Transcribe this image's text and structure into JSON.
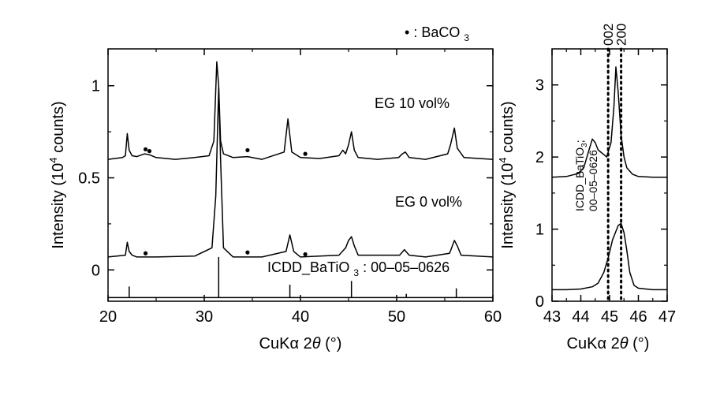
{
  "chart_data": [
    {
      "type": "line",
      "panel": "left",
      "xlabel": "CuKα 2θ (°)",
      "ylabel": "Intensity (10^4 counts)",
      "xlim": [
        20,
        60
      ],
      "ylim": [
        -0.17,
        1.2
      ],
      "xticks": [
        "20",
        "30",
        "40",
        "50",
        "60"
      ],
      "xtick_values": [
        20,
        30,
        40,
        50,
        60
      ],
      "yticks": [
        "0",
        "0.5",
        "1"
      ],
      "ytick_values": [
        0,
        0.5,
        1
      ],
      "grid": false,
      "series": [
        {
          "name": "EG 10 vol%",
          "baseline": 0.6,
          "x": [
            20,
            21.5,
            21.8,
            22.0,
            22.2,
            22.5,
            23,
            23.8,
            24.3,
            25,
            27,
            29,
            30.5,
            31.0,
            31.3,
            31.5,
            31.7,
            32.0,
            33,
            34.5,
            36,
            38.3,
            38.7,
            39.1,
            40,
            42,
            44,
            44.4,
            44.7,
            45.0,
            45.3,
            45.6,
            46,
            48,
            50.2,
            50.6,
            50.9,
            51.3,
            53,
            55.3,
            55.6,
            56.0,
            56.3,
            57,
            60
          ],
          "y": [
            0.6,
            0.61,
            0.62,
            0.74,
            0.65,
            0.62,
            0.615,
            0.63,
            0.625,
            0.61,
            0.6,
            0.61,
            0.62,
            0.7,
            1.13,
            1.0,
            0.7,
            0.63,
            0.61,
            0.615,
            0.6,
            0.64,
            0.82,
            0.64,
            0.61,
            0.605,
            0.62,
            0.65,
            0.63,
            0.68,
            0.75,
            0.65,
            0.61,
            0.6,
            0.61,
            0.63,
            0.64,
            0.61,
            0.6,
            0.63,
            0.68,
            0.77,
            0.66,
            0.61,
            0.6
          ]
        },
        {
          "name": "EG 0 vol%",
          "baseline": 0.07,
          "x": [
            20,
            21.8,
            22.0,
            22.2,
            22.5,
            23,
            25,
            29,
            30.8,
            31.2,
            31.5,
            31.7,
            32.0,
            33,
            36,
            38.5,
            38.9,
            39.3,
            40,
            44,
            44.7,
            45.0,
            45.3,
            45.6,
            46,
            50.3,
            50.8,
            51.3,
            53,
            55.5,
            56.0,
            56.3,
            56.7,
            60
          ],
          "y": [
            0.07,
            0.08,
            0.15,
            0.1,
            0.08,
            0.07,
            0.07,
            0.075,
            0.12,
            0.4,
            0.99,
            0.6,
            0.12,
            0.07,
            0.07,
            0.1,
            0.19,
            0.1,
            0.07,
            0.08,
            0.12,
            0.16,
            0.18,
            0.13,
            0.08,
            0.08,
            0.11,
            0.08,
            0.07,
            0.09,
            0.16,
            0.13,
            0.08,
            0.07
          ]
        }
      ],
      "reference_lines": {
        "name": "ICDD_BaTiO3: 00-05-0626",
        "baseline": -0.15,
        "positions": [
          22.2,
          31.5,
          38.9,
          45.3,
          51.0,
          56.2
        ],
        "heights": [
          0.06,
          0.22,
          0.07,
          0.09,
          0.02,
          0.05
        ]
      },
      "markers": {
        "label": "•: BaCO3",
        "points": [
          {
            "x": 23.9,
            "y": 0.655
          },
          {
            "x": 24.3,
            "y": 0.645
          },
          {
            "x": 34.5,
            "y": 0.65
          },
          {
            "x": 40.5,
            "y": 0.63
          },
          {
            "x": 23.9,
            "y": 0.09
          },
          {
            "x": 34.5,
            "y": 0.095
          },
          {
            "x": 40.5,
            "y": 0.085
          }
        ]
      },
      "annotations": {
        "legend_marker": "•",
        "legend_text": ": BaCO",
        "legend_sub": "3",
        "eg10": "EG 10 vol%",
        "eg0": "EG 0 vol%",
        "icdd_prefix": "ICDD_BaTiO",
        "icdd_sub": "3",
        "icdd_suffix": ": 00–05–0626"
      }
    },
    {
      "type": "line",
      "panel": "right",
      "xlabel": "CuKα 2θ (°)",
      "ylabel": "Intensity (10^4 counts)",
      "xlim": [
        43,
        47
      ],
      "ylim": [
        0,
        3.5
      ],
      "xticks": [
        "43",
        "44",
        "45",
        "46",
        "47"
      ],
      "xtick_values": [
        43,
        44,
        45,
        46,
        47
      ],
      "yticks": [
        "0",
        "1",
        "2",
        "3"
      ],
      "ytick_values": [
        0,
        1,
        2,
        3
      ],
      "grid": false,
      "top_labels": [
        {
          "text": "002",
          "x": 44.95
        },
        {
          "text": "200",
          "x": 45.4
        }
      ],
      "vlines": [
        44.95,
        45.4
      ],
      "series": [
        {
          "name": "EG 10 vol%",
          "x": [
            43.0,
            43.5,
            43.9,
            44.1,
            44.25,
            44.4,
            44.5,
            44.6,
            44.75,
            44.9,
            45.05,
            45.15,
            45.22,
            45.3,
            45.4,
            45.5,
            45.6,
            45.8,
            46.0,
            46.5,
            47.0
          ],
          "y": [
            1.72,
            1.73,
            1.77,
            1.85,
            2.05,
            2.25,
            2.2,
            2.1,
            2.05,
            2.0,
            2.2,
            2.7,
            3.25,
            2.9,
            2.3,
            2.0,
            1.85,
            1.76,
            1.73,
            1.72,
            1.72
          ]
        },
        {
          "name": "EG 0 vol%",
          "x": [
            43.0,
            43.5,
            44.0,
            44.4,
            44.6,
            44.8,
            44.95,
            45.1,
            45.2,
            45.3,
            45.4,
            45.5,
            45.6,
            45.7,
            45.85,
            46.0,
            46.5,
            47.0
          ],
          "y": [
            0.16,
            0.16,
            0.17,
            0.2,
            0.25,
            0.4,
            0.6,
            0.85,
            0.95,
            1.05,
            1.08,
            0.95,
            0.7,
            0.4,
            0.22,
            0.18,
            0.16,
            0.16
          ]
        }
      ],
      "annotations": {
        "ref_line1_prefix": "ICDD_BaTiO",
        "ref_line1_sub": "3",
        "ref_line1_suffix": ";",
        "ref_line2": "00–05–0626"
      }
    }
  ],
  "axis_text": {
    "ylabel_main": "Intensity (10",
    "ylabel_sup": "4",
    "ylabel_end": " counts)",
    "xlabel_main": "CuKα 2",
    "xlabel_theta": "θ",
    "xlabel_end": " (°)"
  }
}
